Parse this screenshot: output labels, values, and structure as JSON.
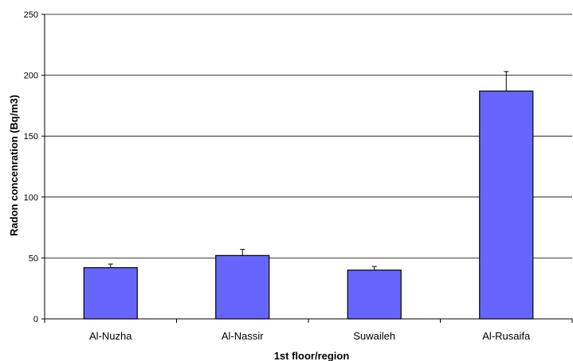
{
  "chart_data": {
    "type": "bar",
    "title": "",
    "xlabel": "1st floor/region",
    "ylabel": "Radon concenration (Bq/m3)",
    "categories": [
      "Al-Nuzha",
      "Al-Nassir",
      "Suwaileh",
      "Al-Rusaifa"
    ],
    "series": [
      {
        "values": [
          42,
          52,
          40,
          187
        ],
        "error_upper": [
          3,
          5,
          3,
          16
        ],
        "color": "#6666ff"
      }
    ],
    "ylim": [
      0,
      250
    ],
    "yticks": [
      0,
      50,
      100,
      150,
      200,
      250
    ],
    "grid": true,
    "legend": "none"
  }
}
